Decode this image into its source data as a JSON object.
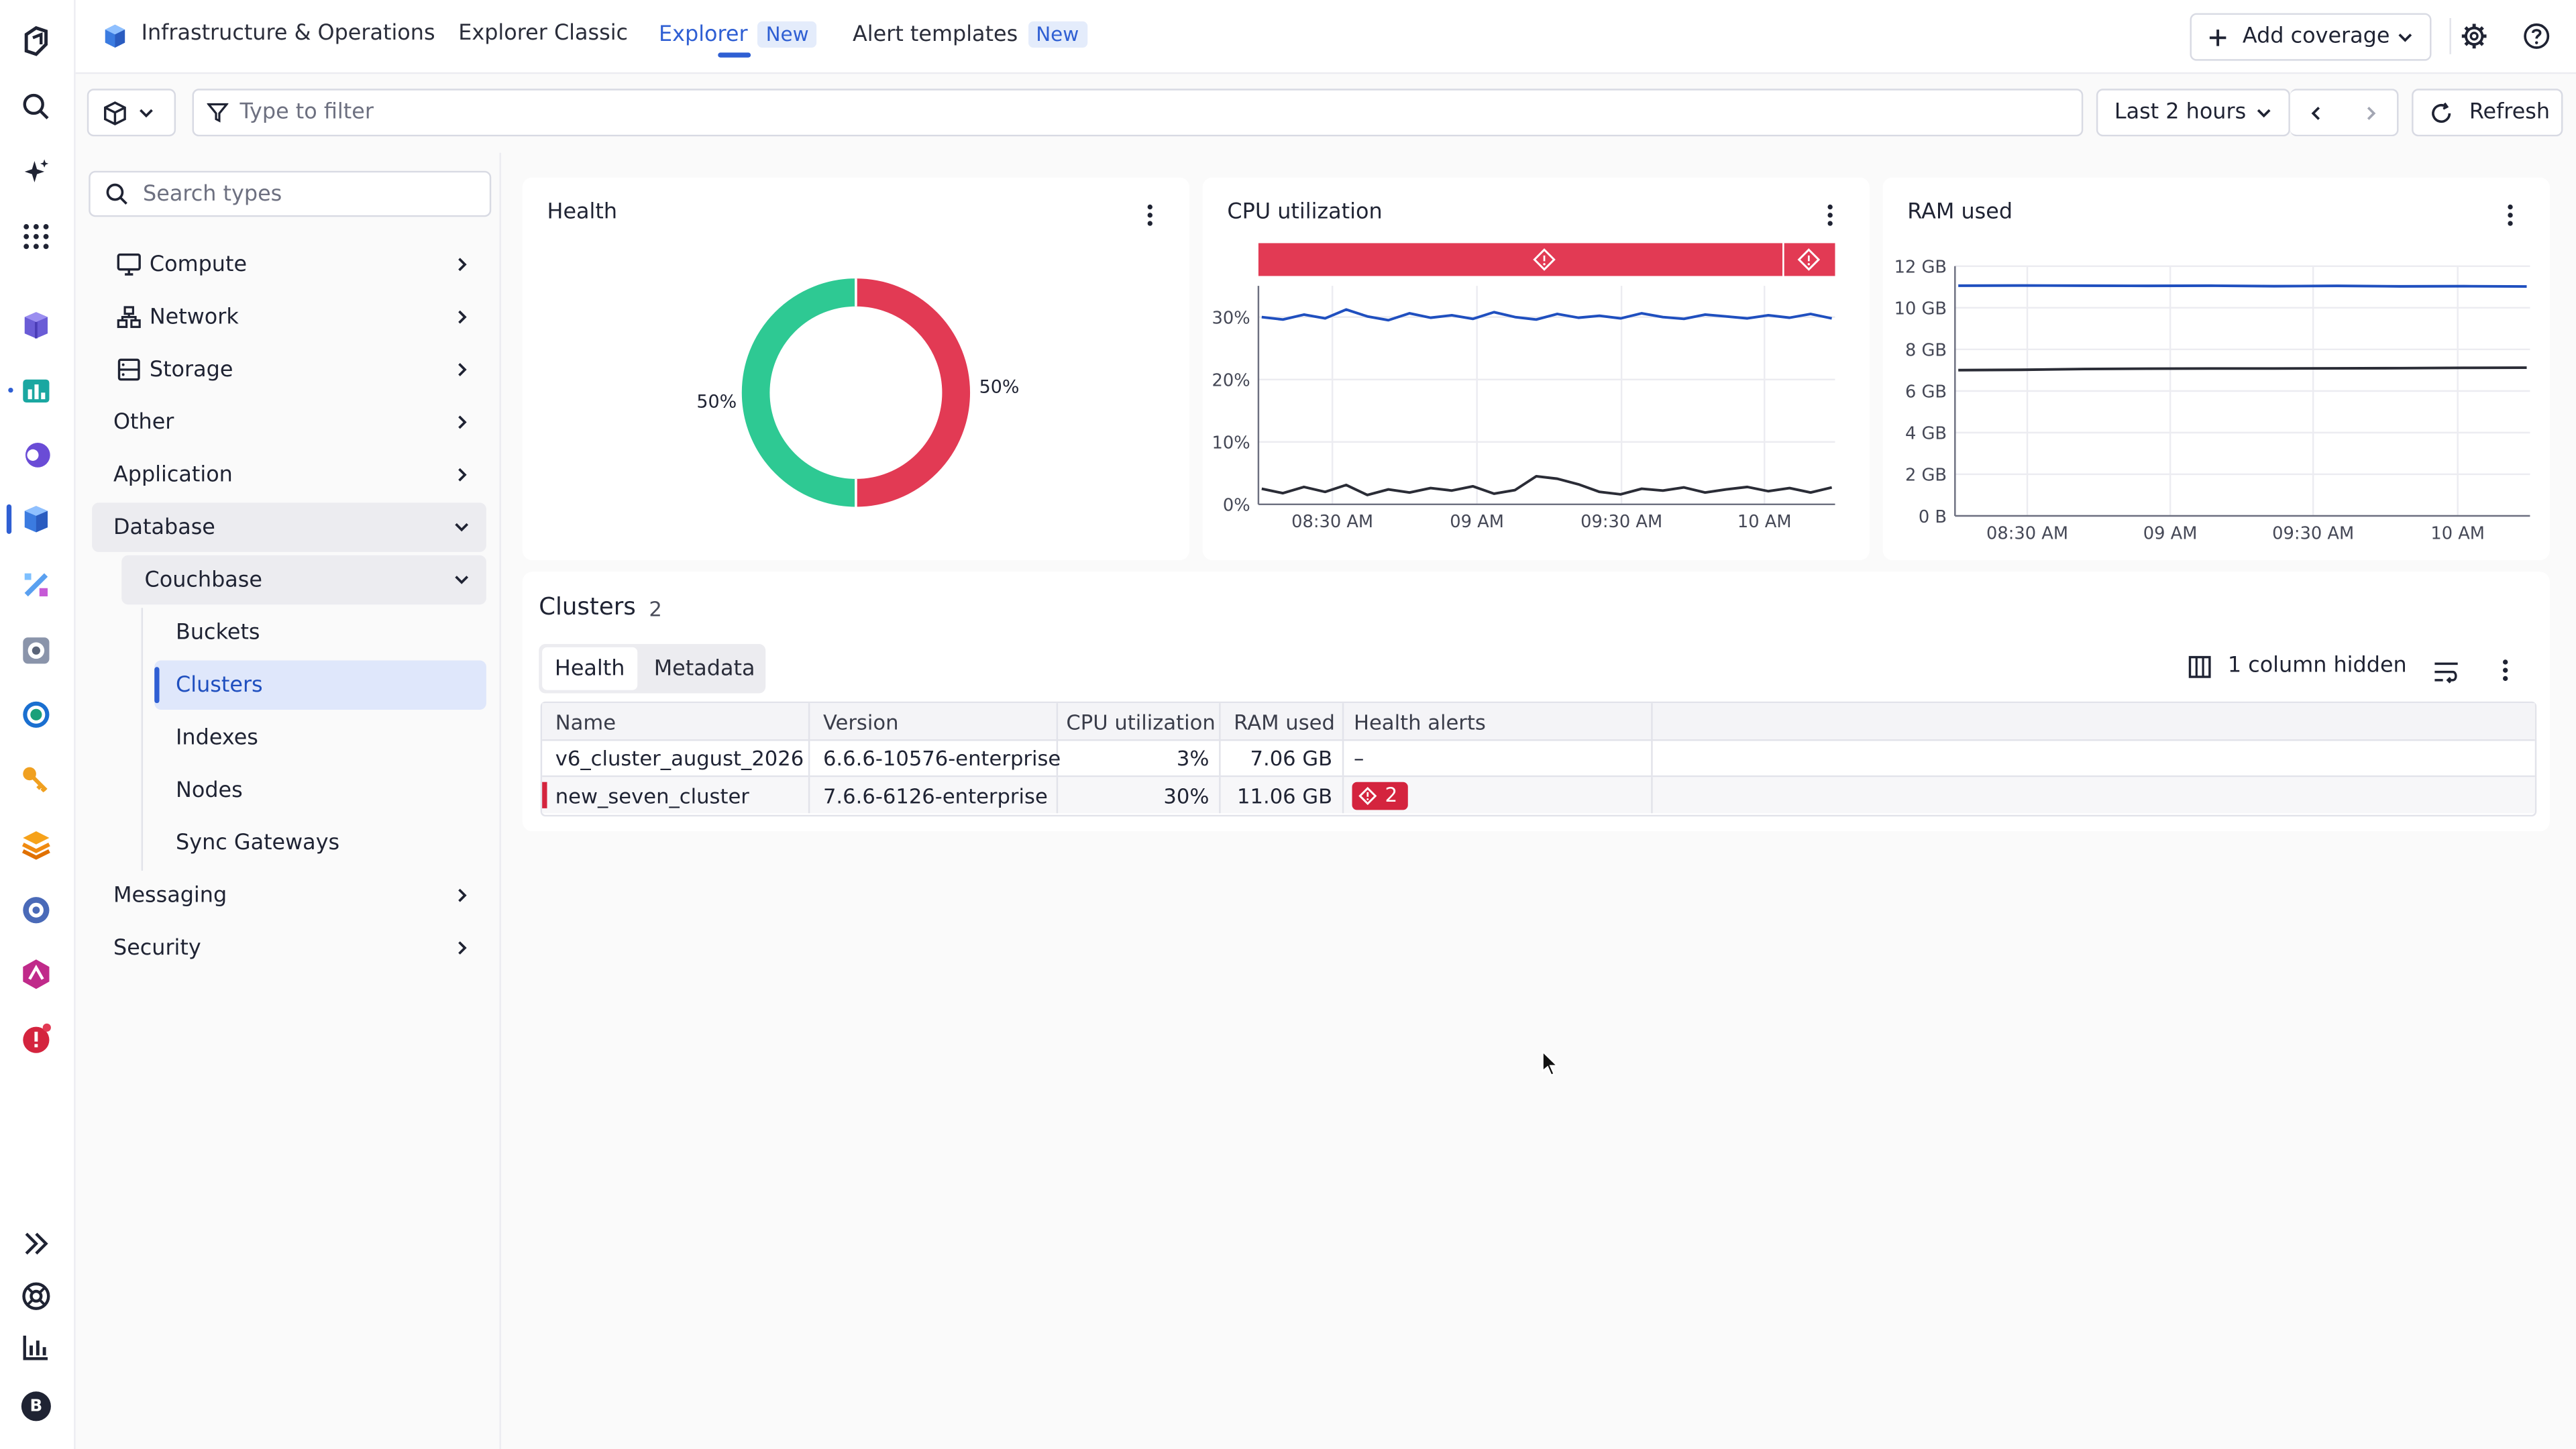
{
  "app": {
    "title": "Infrastructure & Operations"
  },
  "nav_tabs": [
    {
      "label": "Explorer Classic"
    },
    {
      "label": "Explorer",
      "badge": "New",
      "active": true
    },
    {
      "label": "Alert templates",
      "badge": "New"
    }
  ],
  "header": {
    "add_coverage": "Add coverage"
  },
  "filterbar": {
    "placeholder": "Type to filter",
    "timeframe": "Last 2 hours",
    "refresh": "Refresh"
  },
  "sidebar": {
    "search_placeholder": "Search types",
    "items": [
      {
        "label": "Compute"
      },
      {
        "label": "Network"
      },
      {
        "label": "Storage"
      },
      {
        "label": "Other"
      },
      {
        "label": "Application"
      },
      {
        "label": "Database",
        "expanded": true
      },
      {
        "label": "Couchbase",
        "expanded": true
      },
      {
        "label": "Buckets"
      },
      {
        "label": "Clusters",
        "selected": true
      },
      {
        "label": "Indexes"
      },
      {
        "label": "Nodes"
      },
      {
        "label": "Sync Gateways"
      },
      {
        "label": "Messaging"
      },
      {
        "label": "Security"
      }
    ]
  },
  "cards": {
    "health": {
      "title": "Health",
      "left_pct": "50%",
      "right_pct": "50%"
    },
    "cpu": {
      "title": "CPU utilization"
    },
    "ram": {
      "title": "RAM used"
    }
  },
  "chart_data": [
    {
      "type": "pie",
      "title": "Health",
      "slices": [
        {
          "value": 50,
          "color": "#e23a54"
        },
        {
          "value": 50,
          "color": "#2ec993"
        }
      ]
    },
    {
      "type": "line",
      "title": "CPU utilization",
      "x_ticks": [
        "08:30 AM",
        "09 AM",
        "09:30 AM",
        "10 AM"
      ],
      "y_ticks": [
        "0%",
        "10%",
        "20%",
        "30%"
      ],
      "ylim": [
        0,
        35
      ],
      "series": [
        {
          "color": "#1f4fbf",
          "values": [
            30,
            29.6,
            30.4,
            29.8,
            31.2,
            30.1,
            29.5,
            30.6,
            29.9,
            30.3,
            29.7,
            30.8,
            30.0,
            29.6,
            30.5,
            29.9,
            30.2,
            29.8,
            30.6,
            30.0,
            29.7,
            30.4,
            30.1,
            29.8,
            30.3,
            29.9,
            30.5,
            29.8
          ]
        },
        {
          "color": "#2a2c36",
          "values": [
            2.5,
            1.8,
            2.8,
            2.0,
            3.1,
            1.5,
            2.4,
            1.9,
            2.6,
            2.2,
            2.9,
            1.7,
            2.3,
            4.5,
            4.1,
            3.2,
            2.0,
            1.6,
            2.5,
            2.2,
            2.7,
            1.9,
            2.4,
            2.8,
            2.1,
            2.6,
            1.9,
            2.7
          ]
        }
      ],
      "alert_band_color": "#e23a54"
    },
    {
      "type": "line",
      "title": "RAM used",
      "x_ticks": [
        "08:30 AM",
        "09 AM",
        "09:30 AM",
        "10 AM"
      ],
      "y_ticks": [
        "0 B",
        "2 GB",
        "4 GB",
        "6 GB",
        "8 GB",
        "10 GB",
        "12 GB"
      ],
      "ylim": [
        0,
        12
      ],
      "series": [
        {
          "color": "#1f4fbf",
          "values": [
            11.06,
            11.07,
            11.06,
            11.05,
            11.06,
            11.04,
            11.05,
            11.03,
            11.04,
            11.02
          ]
        },
        {
          "color": "#2a2c36",
          "values": [
            7.0,
            7.02,
            7.06,
            7.07,
            7.08,
            7.08,
            7.09,
            7.1,
            7.11,
            7.12
          ]
        }
      ]
    }
  ],
  "clusters": {
    "title": "Clusters",
    "count": "2",
    "tabs": [
      "Health",
      "Metadata"
    ],
    "columns_hidden": "1 column hidden",
    "columns": [
      "Name",
      "Version",
      "CPU utilization",
      "RAM used",
      "Health alerts"
    ],
    "rows": [
      {
        "name": "v6_cluster_august_2026",
        "version": "6.6.6-10576-enterprise",
        "cpu": "3%",
        "ram": "7.06 GB",
        "alerts": "–"
      },
      {
        "name": "new_seven_cluster",
        "version": "7.6.6-6126-enterprise",
        "cpu": "30%",
        "ram": "11.06 GB",
        "alerts": "2"
      }
    ]
  },
  "rail_icons": [
    "dynatrace-logo-icon",
    "search-icon",
    "sparkle-icon",
    "apps-grid-icon",
    "infra-app-icon",
    "dashboards-app-icon",
    "observability-app-icon",
    "infra-ops-app-icon",
    "kubernetes-app-icon",
    "synthetic-app-icon",
    "database-app-icon",
    "key-app-icon",
    "stack-app-icon",
    "settings-app-icon",
    "security-app-icon",
    "problems-app-icon",
    "expand-rail-icon",
    "help-icon",
    "reports-icon",
    "user-avatar-icon"
  ],
  "user": {
    "initial": "B"
  }
}
